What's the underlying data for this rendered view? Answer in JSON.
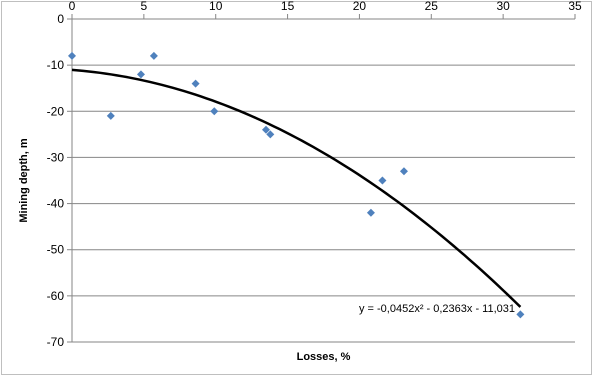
{
  "chart_data": {
    "type": "scatter",
    "title": "",
    "xlabel": "Losses, %",
    "ylabel": "Mining depth, m",
    "xlim": [
      0,
      35
    ],
    "ylim": [
      -70,
      0
    ],
    "x_ticks": [
      0,
      5,
      10,
      15,
      20,
      25,
      30,
      35
    ],
    "y_ticks": [
      0,
      -10,
      -20,
      -30,
      -40,
      -50,
      -60,
      -70
    ],
    "grid": "horizontal",
    "legend": "none",
    "series": [
      {
        "marker": "diamond",
        "color": "#4f81bd",
        "x": [
          0.0,
          2.7,
          4.8,
          5.7,
          8.6,
          9.9,
          13.5,
          13.8,
          20.8,
          21.6,
          23.1,
          31.2
        ],
        "y": [
          -8,
          -21,
          -12,
          -8,
          -14,
          -20,
          -24,
          -25,
          -42,
          -35,
          -33,
          -64
        ]
      }
    ],
    "trendline": {
      "type": "polynomial",
      "coefficients": [
        -0.0452,
        -0.2363,
        -11.031
      ],
      "x_range": [
        0,
        31.2
      ],
      "color": "#000000",
      "label": "y = -0,0452x² - 0,2363x - 11,031"
    }
  }
}
